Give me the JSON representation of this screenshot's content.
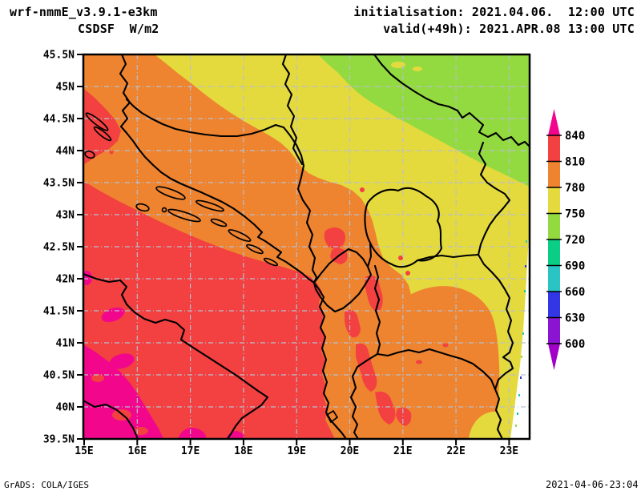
{
  "header": {
    "model": "wrf-nmmE_v3.9.1-e3km",
    "variable": "CSDSF  W/m2",
    "init_line": "initialisation: 2021.04.06.  12:00 UTC",
    "valid_line": "valid(+49h): 2021.APR.08 13:00 UTC"
  },
  "footer": {
    "grads_credit": "GrADS: COLA/IGES",
    "timestamp": "2021-04-06-23:04"
  },
  "axes": {
    "lat_labels": [
      "45.5N",
      "45N",
      "44.5N",
      "44N",
      "43.5N",
      "43N",
      "42.5N",
      "42N",
      "41.5N",
      "41N",
      "40.5N",
      "40N",
      "39.5N"
    ],
    "lon_labels": [
      "15E",
      "16E",
      "17E",
      "18E",
      "19E",
      "20E",
      "21E",
      "22E",
      "23E"
    ]
  },
  "colorbar": {
    "unit": "W/m2",
    "tick_values": [
      "840",
      "810",
      "780",
      "750",
      "720",
      "690",
      "660",
      "630",
      "600"
    ],
    "band_colors_top_to_bottom": [
      "#F2078C",
      "#F34040",
      "#EE8430",
      "#E4DA3E",
      "#93DA40",
      "#0ACE85",
      "#2BC4C4",
      "#3236E4",
      "#8A14D2",
      "#A000C8"
    ],
    "band_ranges_top_to_bottom": [
      ">840",
      "810-840",
      "780-810",
      "750-780",
      "720-750",
      "690-720",
      "660-690",
      "630-660",
      "600-630",
      "<600"
    ]
  },
  "palette": {
    "orange": "#EE8430",
    "red": "#F34040",
    "magenta": "#F2078C",
    "yellow": "#E4DA3E",
    "green": "#93DA40",
    "cyan": "#2BC4C4",
    "teal": "#0ACE85",
    "blue": "#3236E4",
    "violet": "#8A14D2",
    "purple": "#A000C8",
    "grid": "#B7BFCF",
    "white": "#FFFFFF"
  }
}
